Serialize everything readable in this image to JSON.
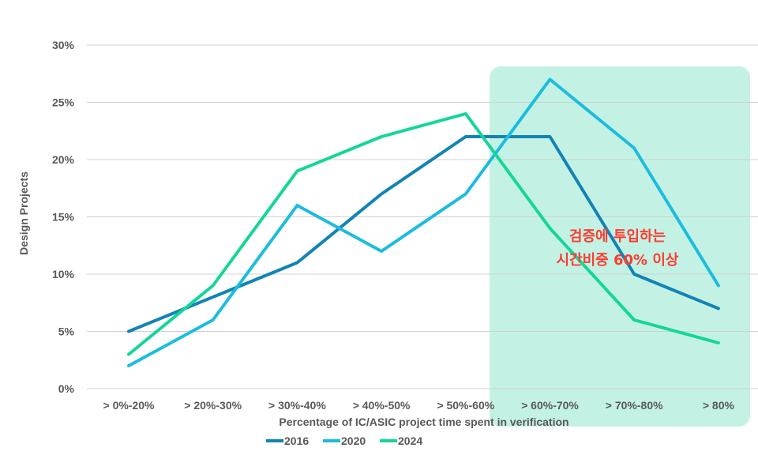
{
  "chart_data": {
    "type": "line",
    "categories": [
      "> 0%-20%",
      "> 20%-30%",
      "> 30%-40%",
      "> 40%-50%",
      "> 50%-60%",
      "> 60%-70%",
      "> 70%-80%",
      "> 80%"
    ],
    "series": [
      {
        "name": "2016",
        "color": "#1383b5",
        "values": [
          5,
          8,
          11,
          17,
          22,
          22,
          10,
          7
        ]
      },
      {
        "name": "2020",
        "color": "#1cbcde",
        "values": [
          2,
          6,
          16,
          12,
          17,
          27,
          21,
          9
        ]
      },
      {
        "name": "2024",
        "color": "#14d69a",
        "values": [
          3,
          9,
          19,
          22,
          24,
          14,
          6,
          4
        ]
      }
    ],
    "ylim": [
      0,
      30
    ],
    "yticks": [
      0,
      5,
      10,
      15,
      20,
      25,
      30
    ],
    "ytick_labels": [
      "0%",
      "5%",
      "10%",
      "15%",
      "20%",
      "25%",
      "30%"
    ],
    "xlabel": "Percentage of IC/ASIC project time spent in verification",
    "ylabel": "Design Projects",
    "grid": true,
    "legend_position": "bottom-left",
    "highlight": {
      "from_category": "> 60%-70%",
      "to_category": "> 80%",
      "color": "#c3f2e4",
      "annotation_line1": "검증에 투입하는",
      "annotation_line2": "시간비중 60% 이상",
      "annotation_color": "#ff3b30"
    }
  }
}
